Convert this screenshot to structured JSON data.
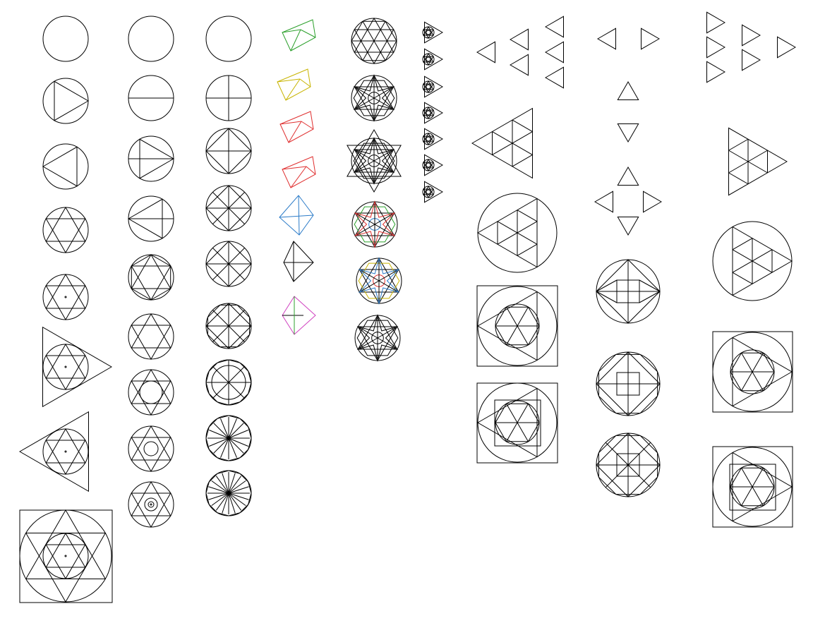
{
  "colors": {
    "background": "#ffffff",
    "ink": "#000000",
    "green": "#2ca02c",
    "yellow": "#c8b400",
    "red": "#e03030",
    "blue": "#2b7bc8",
    "magenta": "#d040c0"
  },
  "columns": [
    {
      "name": "circle-triangle-progression",
      "figures": [
        "circle",
        "circle-with-triangle",
        "circle-with-reversed-triangle",
        "circle-with-hexagram",
        "hexagram-with-center-dot",
        "hexagram-in-outer-triangle",
        "hexagram-in-reversed-triangle",
        "hexagram-in-square-and-circle"
      ]
    },
    {
      "name": "circle-division-progression",
      "figures": [
        "circle",
        "circle-with-diameter",
        "circle-with-triangle-and-axis",
        "circle-with-reversed-triangle-and-axis",
        "circle-with-hexagon",
        "circle-with-hexagram",
        "hexagram-with-inner-circle",
        "hexagram-with-two-circles",
        "hexagram-with-three-circles"
      ]
    },
    {
      "name": "circle-polygon-progression",
      "figures": [
        "circle",
        "circle-with-cross",
        "circle-with-square",
        "square-with-diagonals",
        "octagram",
        "decagon",
        "dodecagon-with-ring",
        "sixteen-spoke-wheel",
        "twenty-spoke-wheel"
      ]
    },
    {
      "name": "colored-pyramids",
      "figures": [
        "pyramid-green",
        "pyramid-yellow",
        "pyramid-red",
        "pyramid-red-tilted",
        "pyramid-blue",
        "pyramid-black",
        "pyramid-multicolor"
      ]
    },
    {
      "name": "star-mandalas",
      "figures": [
        "hexagon-circle",
        "star-mandala",
        "outer-star",
        "colored-star",
        "colored-star-2",
        "star-mandala-small"
      ]
    },
    {
      "name": "mini-triangle-stack",
      "figures": [
        "mini-1",
        "mini-2",
        "mini-3",
        "mini-4",
        "mini-5",
        "mini-6",
        "mini-7"
      ]
    },
    {
      "name": "triangle-groups-left",
      "figures": [
        "three-triangle-arrows",
        "subdivided-triangle",
        "subdivided-triangle-in-circle",
        "triangle-circle-square",
        "hexagon-in-square-circle"
      ]
    },
    {
      "name": "arrow-shapes-middle",
      "figures": [
        "left-right-pair",
        "up-triangle",
        "down-triangle",
        "four-way-compass",
        "diamond-square-circle",
        "octagon-star-circle",
        "double-octagon-circle"
      ]
    },
    {
      "name": "triangle-groups-right",
      "figures": [
        "triangle-column-arrows",
        "subdivided-triangle",
        "subdivided-triangle-in-circle",
        "hexagon-in-circle-square",
        "square-hexagon-circle-square"
      ]
    }
  ]
}
